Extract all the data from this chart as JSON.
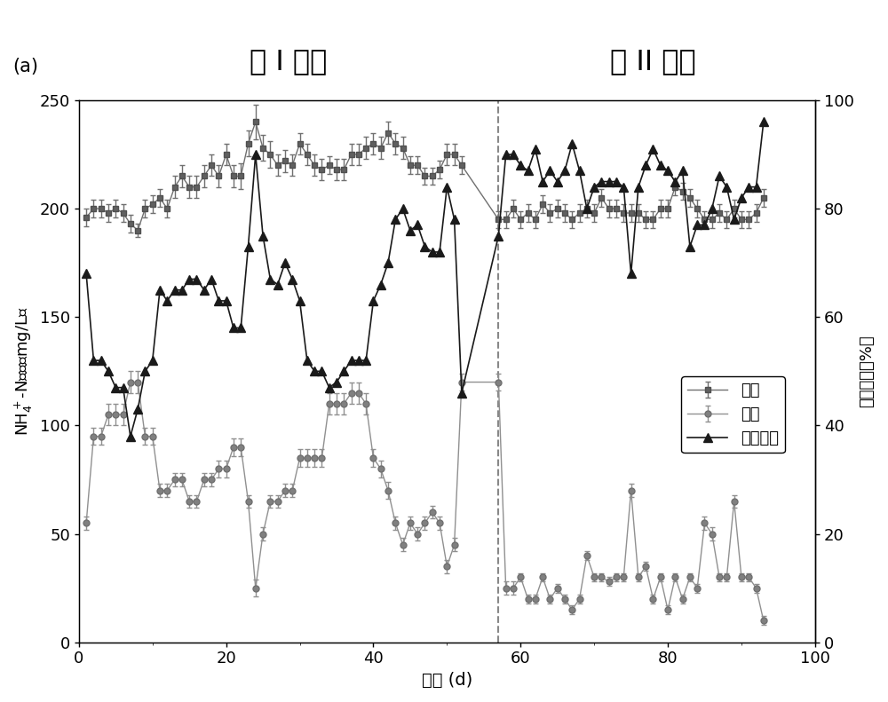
{
  "title_left": "第 I 阶段",
  "title_right": "第 II 阶段",
  "label_a": "(a)",
  "xlabel": "时间 (d)",
  "ylabel_left": "NH₄⁺-N浓度（mg/L）",
  "ylabel_right": "氨氧化率（%）",
  "legend_inflow": "进水",
  "legend_outflow": "出水",
  "legend_rate": "氨氧化率",
  "divider_x": 57,
  "xlim": [
    0,
    100
  ],
  "ylim_left": [
    0,
    250
  ],
  "ylim_right": [
    0,
    100
  ],
  "inflow_x": [
    1,
    2,
    3,
    4,
    5,
    6,
    7,
    8,
    9,
    10,
    11,
    12,
    13,
    14,
    15,
    16,
    17,
    18,
    19,
    20,
    21,
    22,
    23,
    24,
    25,
    26,
    27,
    28,
    29,
    30,
    31,
    32,
    33,
    34,
    35,
    36,
    37,
    38,
    39,
    40,
    41,
    42,
    43,
    44,
    45,
    46,
    47,
    48,
    49,
    50,
    51,
    52,
    57,
    58,
    59,
    60,
    61,
    62,
    63,
    64,
    65,
    66,
    67,
    68,
    69,
    70,
    71,
    72,
    73,
    74,
    75,
    76,
    77,
    78,
    79,
    80,
    81,
    82,
    83,
    84,
    85,
    86,
    87,
    88,
    89,
    90,
    91,
    92,
    93
  ],
  "inflow_y": [
    196,
    200,
    200,
    198,
    200,
    198,
    193,
    190,
    200,
    202,
    205,
    200,
    210,
    215,
    210,
    210,
    215,
    220,
    215,
    225,
    215,
    215,
    230,
    240,
    228,
    225,
    220,
    222,
    220,
    230,
    225,
    220,
    218,
    220,
    218,
    218,
    225,
    225,
    228,
    230,
    228,
    235,
    230,
    228,
    220,
    220,
    215,
    215,
    218,
    225,
    225,
    220,
    195,
    195,
    200,
    195,
    198,
    195,
    202,
    198,
    200,
    198,
    195,
    198,
    200,
    198,
    205,
    200,
    200,
    198,
    198,
    198,
    195,
    195,
    200,
    200,
    210,
    208,
    205,
    200,
    195,
    195,
    198,
    195,
    200,
    195,
    195,
    198,
    205
  ],
  "inflow_yerr": [
    4,
    4,
    4,
    4,
    4,
    4,
    4,
    3,
    4,
    4,
    4,
    4,
    5,
    5,
    5,
    5,
    5,
    5,
    5,
    5,
    5,
    6,
    6,
    8,
    6,
    6,
    5,
    5,
    5,
    5,
    5,
    5,
    5,
    4,
    5,
    5,
    5,
    5,
    5,
    5,
    5,
    5,
    5,
    5,
    4,
    4,
    4,
    4,
    4,
    5,
    5,
    4,
    4,
    4,
    4,
    4,
    4,
    4,
    4,
    4,
    4,
    4,
    4,
    4,
    4,
    4,
    4,
    4,
    4,
    4,
    4,
    4,
    4,
    4,
    4,
    4,
    4,
    4,
    4,
    4,
    4,
    4,
    4,
    4,
    4,
    4,
    4,
    4,
    4
  ],
  "outflow_x": [
    1,
    2,
    3,
    4,
    5,
    6,
    7,
    8,
    9,
    10,
    11,
    12,
    13,
    14,
    15,
    16,
    17,
    18,
    19,
    20,
    21,
    22,
    23,
    24,
    25,
    26,
    27,
    28,
    29,
    30,
    31,
    32,
    33,
    34,
    35,
    36,
    37,
    38,
    39,
    40,
    41,
    42,
    43,
    44,
    45,
    46,
    47,
    48,
    49,
    50,
    51,
    52,
    57,
    58,
    59,
    60,
    61,
    62,
    63,
    64,
    65,
    66,
    67,
    68,
    69,
    70,
    71,
    72,
    73,
    74,
    75,
    76,
    77,
    78,
    79,
    80,
    81,
    82,
    83,
    84,
    85,
    86,
    87,
    88,
    89,
    90,
    91,
    92,
    93
  ],
  "outflow_y": [
    55,
    95,
    95,
    105,
    105,
    105,
    120,
    120,
    95,
    95,
    70,
    70,
    75,
    75,
    65,
    65,
    75,
    75,
    80,
    80,
    90,
    90,
    65,
    25,
    50,
    65,
    65,
    70,
    70,
    85,
    85,
    85,
    85,
    110,
    110,
    110,
    115,
    115,
    110,
    85,
    80,
    70,
    55,
    45,
    55,
    50,
    55,
    60,
    55,
    35,
    45,
    120,
    120,
    25,
    25,
    30,
    20,
    20,
    30,
    20,
    25,
    20,
    15,
    20,
    40,
    30,
    30,
    28,
    30,
    30,
    70,
    30,
    35,
    20,
    30,
    15,
    30,
    20,
    30,
    25,
    55,
    50,
    30,
    30,
    65,
    30,
    30,
    25,
    10
  ],
  "outflow_yerr": [
    3,
    4,
    4,
    5,
    5,
    5,
    5,
    5,
    4,
    4,
    3,
    3,
    3,
    3,
    3,
    3,
    3,
    3,
    4,
    4,
    4,
    4,
    3,
    4,
    3,
    3,
    3,
    3,
    3,
    4,
    4,
    4,
    4,
    5,
    5,
    5,
    5,
    5,
    5,
    4,
    4,
    4,
    3,
    3,
    3,
    3,
    3,
    3,
    3,
    3,
    3,
    4,
    4,
    3,
    3,
    2,
    2,
    2,
    2,
    2,
    2,
    2,
    2,
    2,
    2,
    2,
    2,
    2,
    2,
    2,
    3,
    2,
    2,
    2,
    2,
    2,
    2,
    2,
    2,
    2,
    3,
    3,
    2,
    2,
    3,
    2,
    2,
    2,
    2
  ],
  "rate_x": [
    1,
    2,
    3,
    4,
    5,
    6,
    7,
    8,
    9,
    10,
    11,
    12,
    13,
    14,
    15,
    16,
    17,
    18,
    19,
    20,
    21,
    22,
    23,
    24,
    25,
    26,
    27,
    28,
    29,
    30,
    31,
    32,
    33,
    34,
    35,
    36,
    37,
    38,
    39,
    40,
    41,
    42,
    43,
    44,
    45,
    46,
    47,
    48,
    49,
    50,
    51,
    52,
    57,
    58,
    59,
    60,
    61,
    62,
    63,
    64,
    65,
    66,
    67,
    68,
    69,
    70,
    71,
    72,
    73,
    74,
    75,
    76,
    77,
    78,
    79,
    80,
    81,
    82,
    83,
    84,
    85,
    86,
    87,
    88,
    89,
    90,
    91,
    92,
    93
  ],
  "rate_y": [
    68,
    52,
    52,
    50,
    47,
    47,
    38,
    43,
    50,
    52,
    65,
    63,
    65,
    65,
    67,
    67,
    65,
    67,
    63,
    63,
    58,
    58,
    73,
    90,
    75,
    67,
    66,
    70,
    67,
    63,
    52,
    50,
    50,
    47,
    48,
    50,
    52,
    52,
    52,
    63,
    66,
    70,
    78,
    80,
    76,
    77,
    73,
    72,
    72,
    84,
    78,
    46,
    75,
    90,
    90,
    88,
    87,
    91,
    85,
    87,
    85,
    87,
    92,
    87,
    80,
    84,
    85,
    85,
    85,
    84,
    68,
    84,
    88,
    91,
    88,
    87,
    85,
    87,
    73,
    77,
    77,
    80,
    86,
    84,
    78,
    82,
    84,
    84,
    96
  ],
  "color_inflow": "#707070",
  "color_outflow": "#909090",
  "color_rate": "#1a1a1a",
  "color_divider": "#888888",
  "marker_inflow": "s",
  "marker_outflow": "o",
  "marker_rate": "^"
}
